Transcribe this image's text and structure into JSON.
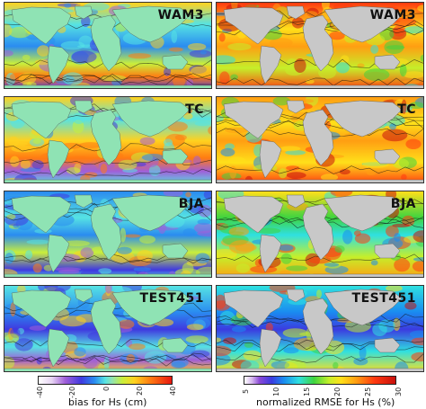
{
  "left_column": {
    "panels": [
      {
        "label": "WAM3"
      },
      {
        "label": "TC"
      },
      {
        "label": "BJA"
      },
      {
        "label": "TEST451"
      }
    ],
    "colorbar": {
      "title": "bias for Hs (cm)",
      "ticks": [
        "-40",
        "-20",
        "0",
        "20",
        "40"
      ],
      "min": -40,
      "max": 40
    }
  },
  "right_column": {
    "panels": [
      {
        "label": "WAM3"
      },
      {
        "label": "TC"
      },
      {
        "label": "BJA"
      },
      {
        "label": "TEST451"
      }
    ],
    "colorbar": {
      "title": "normalized RMSE for Hs (%)",
      "ticks": [
        "5",
        "10",
        "15",
        "20",
        "25",
        "30"
      ],
      "min": 5,
      "max": 30
    }
  },
  "colors": {
    "land_left": "#8fe3b4",
    "land_right": "#c8c8c8"
  }
}
